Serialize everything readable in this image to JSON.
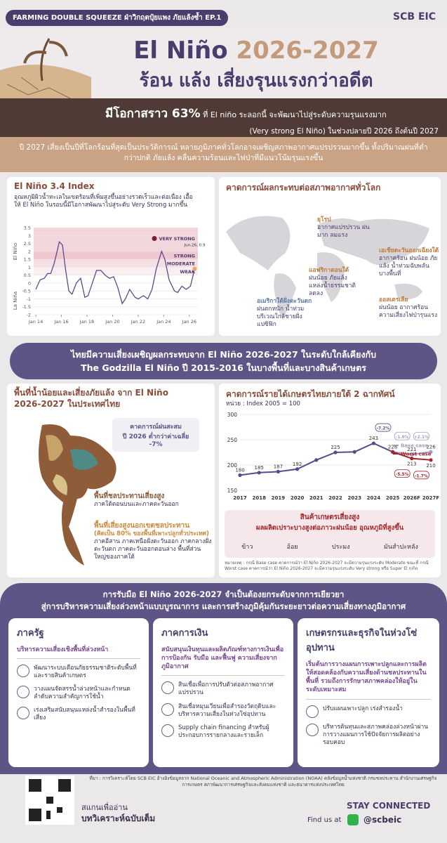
{
  "header": {
    "series_tag": "FARMING DOUBLE SQUEEZE ฝ่าวิกฤตปุ๋ยแพง ภัยแล้งซ้ำ EP.1",
    "logo": "SCB EIC"
  },
  "title": {
    "main": "El Niño",
    "years": "2026-2027",
    "subtitle": "ร้อน แล้ง เสี่ยงรุนแรงกว่าอดีต"
  },
  "highlight": {
    "lead": "มีโอกาสราว 63%",
    "line1": "ที่ El niño ระลอกนี้ จะพัฒนาไปสู่ระดับความรุนแรงมาก",
    "line2": "(Very strong El Niño) ในช่วงปลายปี 2026 ถึงต้นปี 2027"
  },
  "summary": "ปี 2027 เสี่ยงเป็นปีที่โลกร้อนที่สุดเป็นประวัติการณ์ หลายภูมิภาคทั่วโลกอาจเผชิญสภาพอากาศแปรปรวนมากขึ้น ทั้งปริมาณฝนที่ต่ำกว่าปกติ ภัยแล้ง คลื่นความร้อนและไฟป่าที่มีแนวโน้มรุนแรงขึ้น",
  "enso_panel": {
    "title": "El Niño 3.4 Index",
    "description": "อุณหภูมิผิวน้ำทะเลในเขตร้อนที่เพิ่มสูงขึ้นอย่างรวดเร็วและต่อเนื่อง เอื้อให้ El Niño ในรอบนี้มีโอกาสพัฒนาไปสู่ระดับ Very Strong มากขึ้น",
    "chart_data": {
      "type": "line",
      "y_label_top": "El Niño",
      "y_label_bottom": "La Niña",
      "x": [
        "2014-01",
        "2014-05",
        "2014-09",
        "2014-12",
        "2015-03",
        "2015-06",
        "2015-09",
        "2015-11",
        "2016-02",
        "2016-05",
        "2016-08",
        "2016-11",
        "2017-03",
        "2017-07",
        "2017-11",
        "2018-02",
        "2018-06",
        "2018-10",
        "2019-02",
        "2019-06",
        "2019-10",
        "2020-02",
        "2020-06",
        "2020-10",
        "2021-01",
        "2021-05",
        "2021-10",
        "2022-01",
        "2022-06",
        "2022-10",
        "2023-02",
        "2023-06",
        "2023-11",
        "2024-02",
        "2024-06",
        "2024-11",
        "2025-02",
        "2025-06",
        "2025-10",
        "2026-02",
        "2026-06"
      ],
      "values": [
        -0.4,
        0.2,
        0.3,
        0.6,
        0.6,
        1.2,
        2.0,
        2.6,
        2.4,
        0.8,
        -0.5,
        -0.7,
        0.0,
        0.3,
        -0.9,
        -0.8,
        0.0,
        0.8,
        0.8,
        0.5,
        0.3,
        0.4,
        -0.3,
        -1.3,
        -1.0,
        -0.4,
        -0.9,
        -1.0,
        -0.8,
        -1.0,
        -0.4,
        0.9,
        2.0,
        1.5,
        0.2,
        -0.5,
        -0.6,
        -0.2,
        -0.4,
        -0.2,
        0.9
      ],
      "color": "#5b4a8b",
      "point_color": "#f0a35e",
      "annotation": "Jun-26, 0.9",
      "xlim": [
        "2013-11",
        "2026-09"
      ],
      "xticks": [
        {
          "value": "2014-01",
          "label": "Jan 14"
        },
        {
          "value": "2016-01",
          "label": "Jan 16"
        },
        {
          "value": "2018-01",
          "label": "Jan 18"
        },
        {
          "value": "2020-01",
          "label": "Jan 20"
        },
        {
          "value": "2022-01",
          "label": "Jan 22"
        },
        {
          "value": "2024-01",
          "label": "Jan 24"
        },
        {
          "value": "2026-01",
          "label": "Jan 26"
        }
      ],
      "ylim": [
        -2,
        3.5
      ],
      "yticks": [
        3.5,
        3,
        2.5,
        2,
        1.5,
        1,
        0.5,
        0,
        -0.5,
        -1,
        -1.5,
        -2
      ],
      "grid": true,
      "bands": [
        {
          "label": "VERY STRONG",
          "from": 2,
          "to": 3.5,
          "color": "#f3d6dc",
          "marker_color": "#7a1f2b"
        },
        {
          "label": "STRONG",
          "from": 1.5,
          "to": 2,
          "color": "#efc7cf"
        },
        {
          "label": "MODERATE",
          "from": 1,
          "to": 1.5,
          "color": "#f5dfe3"
        },
        {
          "label": "WEAK",
          "from": 0.5,
          "to": 1,
          "color": "#faeef0"
        }
      ]
    }
  },
  "world_panel": {
    "title": "คาดการณ์ผลกระทบต่อสภาพอากาศทั่วโลก",
    "regions": [
      {
        "name": "ยุโรป",
        "text": "อากาศแปรปรวน ฝนมาก ลมแรง"
      },
      {
        "name": "เอเชียตะวันออกเฉียงใต้",
        "text": "อากาศร้อน ฝนน้อย ภัยแล้ง น้ำท่วมฉับพลัน บางพื้นที่"
      },
      {
        "name": "แอฟริกาตอนใต้",
        "text": "ฝนน้อย ภัยแล้ง แหล่งน้ำธรรมชาติลดลง"
      },
      {
        "name": "อเมริกาใต้ฝั่งตะวันตก",
        "text": "ฝนตกหนัก น้ำท่วม บริเวณใกล้ชายฝั่งแปซิฟิก"
      },
      {
        "name": "ออสเตรเลีย",
        "text": "ฝนน้อย อากาศร้อน ความเสี่ยงไฟป่ารุนแรง"
      }
    ]
  },
  "thai_heading": {
    "line1": "ไทยมีความเสี่ยงเผชิญผลกระทบจาก El Niño 2026-2027 ในระดับใกล้เคียงกับ",
    "line2": "The Godzilla El Niño ปี 2015-2016 ในบางพื้นที่และบางสินค้าเกษตร"
  },
  "thai_map": {
    "title": "พื้นที่น้ำน้อยและเสี่ยงภัยแล้ง จาก El Niño 2026-2027 ในประเทศไทย",
    "rain_callout": {
      "line1": "คาดการณ์ฝนสะสม",
      "line2": "ปี 2026 ต่ำกว่าค่าเฉลี่ย -7%"
    },
    "zones": [
      {
        "title": "พื้นที่ชลประทานเสี่ยงสูง",
        "text": "ภาคใต้ตอนบนและภาคตะวันออก"
      },
      {
        "title": "พื้นที่เสี่ยงสูงนอกเขตชลประทาน",
        "note": "(คิดเป็น 80% ของพื้นที่เพาะปลูกทั่วประเทศ)",
        "text": "ภาคอีสาน ภาคเหนือฝั่งตะวันออก ภาคกลางฝั่งตะวันตก ภาคตะวันออกตอนล่าง พื้นที่ส่วนใหญ่ของภาคใต้"
      }
    ]
  },
  "income_panel": {
    "title": "คาดการณ์รายได้เกษตรไทยภายใต้ 2 ฉากทัศน์",
    "unit": "หน่วย : Index 2005 = 100",
    "chart_data": {
      "type": "line",
      "categories": [
        "2017",
        "2018",
        "2019",
        "2020",
        "2021",
        "2022",
        "2023",
        "2024",
        "2025",
        "2026F",
        "2027F"
      ],
      "values": [
        180,
        185,
        187,
        192,
        210,
        225,
        226,
        243,
        226,
        null,
        null
      ],
      "value_labels": [
        "180",
        "185",
        "187",
        "192",
        null,
        "225",
        null,
        "243",
        "226",
        null,
        null
      ],
      "change_labels": [
        null,
        null,
        null,
        null,
        null,
        null,
        null,
        null,
        "-7.2%",
        null,
        null
      ],
      "color": "#5b4a8b",
      "series": [
        {
          "name": "Base case",
          "color": "#a49cc4",
          "values": [
            null,
            null,
            null,
            null,
            null,
            null,
            null,
            null,
            226,
            221,
            226
          ],
          "value_labels": [
            null,
            null,
            null,
            null,
            null,
            null,
            null,
            null,
            null,
            "221",
            "226"
          ],
          "change_labels": [
            null,
            null,
            null,
            null,
            null,
            null,
            null,
            null,
            null,
            "-1.9%",
            "+2.1%"
          ]
        },
        {
          "name": "Worst case",
          "color": "#a3262a",
          "values": [
            null,
            null,
            null,
            null,
            null,
            null,
            null,
            null,
            226,
            213,
            210
          ],
          "value_labels": [
            null,
            null,
            null,
            null,
            null,
            null,
            null,
            null,
            null,
            "213",
            "210"
          ],
          "change_labels": [
            null,
            null,
            null,
            null,
            null,
            null,
            null,
            null,
            null,
            "-5.5%",
            "-1.7%"
          ]
        }
      ],
      "ylim": [
        150,
        300
      ],
      "yticks": [
        150,
        200,
        250,
        300
      ],
      "grid": true
    },
    "crops": {
      "title": "สินค้าเกษตรเสี่ยงสูง",
      "subtitle": "ผลผลิตเปราะบางสูงต่อภาวะฝนน้อย อุณหภูมิที่สูงขึ้น",
      "items": [
        "ข้าว",
        "อ้อย",
        "ประมง",
        "มันสำปะหลัง"
      ]
    },
    "note": "หมายเหตุ : กรณี Base case คาดการณ์ว่า El Niño 2026-2027 จะมีความรุนแรงระดับ Moderate ขณะที่ กรณี Worst case คาดการณ์ว่า El Niño 2026-2027 จะมีความรุนแรงระดับ Very strong หรือ Super El niño"
  },
  "response": {
    "line1": "การรับมือ El Niño 2026-2027 จำเป็นต้องยกระดับจากการเยียวยา",
    "line2": "สู่การบริหารความเสี่ยงล่วงหน้าแบบบูรณาการ และการสร้างภูมิคุ้มกันระยะยาวต่อความเสี่ยงทางภูมิอากาศ",
    "cards": [
      {
        "title": "ภาครัฐ",
        "subtitle": "บริหารความเสี่ยงเชิงพื้นที่ล่วงหน้า",
        "items": [
          "พัฒนาระบบเตือนภัยธรรมชาติระดับพื้นที่และรายสินค้าเกษตร",
          "วางแผนจัดสรรน้ำล่วงหน้าและกำหนดลำดับความสำคัญการใช้น้ำ",
          "เร่งเสริมสนับสนุนแหล่งน้ำสำรองในพื้นที่เสี่ยง"
        ]
      },
      {
        "title": "ภาคการเงิน",
        "subtitle": "สนับสนุนเงินทุนและผลิตภัณฑ์ทางการเงินเพื่อการป้องกัน รับมือ และฟื้นฟู ความเสี่ยงจากภูมิอากาศ",
        "items": [
          "สินเชื่อเพื่อการปรับตัวต่อสภาพอากาศแปรปรวน",
          "สินเชื่อหมุนเวียนเพื่อสำรองวัตถุดิบและบริหารความเสี่ยงในห่วงโซ่อุปทาน",
          "Supply chain financing สำหรับผู้ประกอบการรายกลางและรายเล็ก"
        ]
      },
      {
        "title": "เกษตรกรและธุรกิจในห่วงโซ่อุปทาน",
        "subtitle": "เริ่มต้นการวางแผนการเพาะปลูกและการผลิตให้สอดคล้องกับความเสี่ยงด้านชลประทานในพื้นที่ รวมถึงการรักษาสภาพคล่องให้อยู่ในระดับเหมาะสม",
        "items": [
          "ปรับแผนเพาะปลูก เร่งสำรองน้ำ",
          "บริหารต้นทุนและสภาพคล่องล่วงหน้าผ่านการวางแผนการใช้ปัจจัยการผลิตอย่างรอบคอบ"
        ]
      }
    ]
  },
  "source": "ที่มา : การวิเคราะห์โดย SCB EIC อ้างอิงข้อมูลจาก National Oceanic and Atmospheric Administration (NOAA) คลังข้อมูลน้ำแห่งชาติ กรมชลประทาน สำนักงานเศรษฐกิจการเกษตร สภาพัฒนาการเศรษฐกิจและสังคมแห่งชาติ และธนาคารแห่งประเทศไทย",
  "footer": {
    "scan_line1": "สแกนเพื่ออ่าน",
    "scan_line2": "บทวิเคราะห์ฉบับเต็ม",
    "stay": "STAY CONNECTED",
    "find": "Find us at",
    "handle": "@scbeic"
  }
}
